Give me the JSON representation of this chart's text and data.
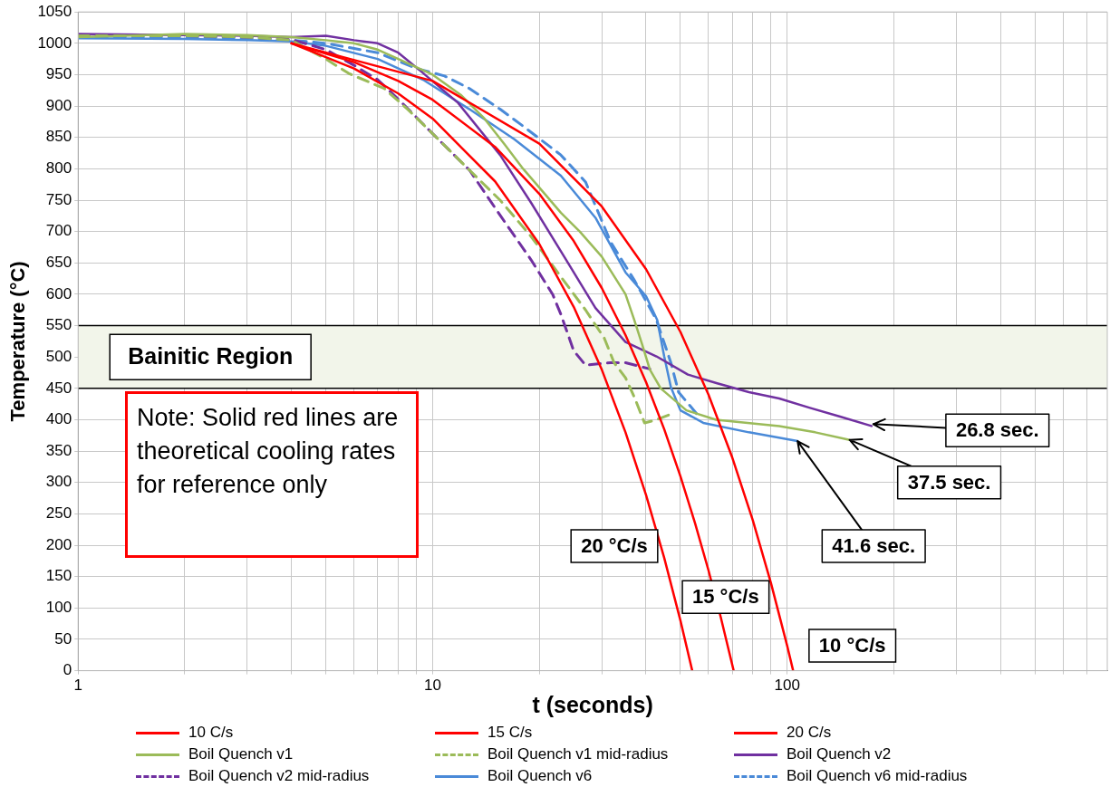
{
  "chart_data": {
    "type": "line",
    "xlabel": "t (seconds)",
    "ylabel": "Temperature (°C)",
    "log": "x",
    "grid": true,
    "legend": "bottom",
    "marker": "none",
    "xlim": [
      1,
      800
    ],
    "ylim": [
      0,
      1050
    ],
    "xticks": [
      1,
      {
        "value": 2,
        "label": null
      },
      {
        "value": 3,
        "label": null
      },
      {
        "value": 4,
        "label": null
      },
      {
        "value": 5,
        "label": null
      },
      {
        "value": 6,
        "label": null
      },
      {
        "value": 7,
        "label": null
      },
      {
        "value": 8,
        "label": null
      },
      {
        "value": 9,
        "label": null
      },
      10,
      {
        "value": 20,
        "label": null
      },
      {
        "value": 30,
        "label": null
      },
      {
        "value": 40,
        "label": null
      },
      {
        "value": 50,
        "label": null
      },
      {
        "value": 60,
        "label": null
      },
      {
        "value": 70,
        "label": null
      },
      {
        "value": 80,
        "label": null
      },
      {
        "value": 90,
        "label": null
      },
      100,
      {
        "value": 200,
        "label": null
      },
      {
        "value": 300,
        "label": null
      },
      {
        "value": 400,
        "label": null
      },
      {
        "value": 500,
        "label": null
      },
      {
        "value": 600,
        "label": null
      },
      {
        "value": 700,
        "label": null
      }
    ],
    "yticks": [
      0,
      50,
      100,
      150,
      200,
      250,
      300,
      350,
      400,
      450,
      500,
      550,
      600,
      650,
      700,
      750,
      800,
      850,
      900,
      950,
      1000,
      1050
    ],
    "bands": [
      {
        "axis": "y",
        "from": 450,
        "to": 550,
        "label": "Bainitic Region",
        "color": "#f2f5ea"
      }
    ],
    "series": [
      {
        "name": "10 C/s",
        "color": "#ff0000",
        "line_style": "solid",
        "x": [
          4,
          10,
          20,
          30,
          40,
          50,
          60,
          70,
          80,
          90,
          100,
          104
        ],
        "values": [
          1000,
          940,
          840,
          740,
          640,
          540,
          440,
          340,
          240,
          140,
          40,
          0
        ]
      },
      {
        "name": "15 C/s",
        "color": "#ff0000",
        "line_style": "solid",
        "x": [
          4,
          6,
          8,
          10,
          15,
          20,
          25,
          30,
          35,
          40,
          45,
          50,
          55,
          60,
          65,
          70.67
        ],
        "values": [
          1000,
          970,
          940,
          910,
          835,
          760,
          685,
          610,
          535,
          460,
          385,
          310,
          235,
          160,
          85,
          0
        ]
      },
      {
        "name": "20 C/s",
        "color": "#ff0000",
        "line_style": "solid",
        "x": [
          4,
          6,
          8,
          10,
          15,
          20,
          25,
          30,
          35,
          40,
          45,
          50,
          54
        ],
        "values": [
          1000,
          960,
          920,
          880,
          780,
          680,
          580,
          480,
          380,
          280,
          180,
          80,
          0
        ]
      },
      {
        "name": "Boil Quench v1",
        "color": "#9bbb59",
        "line_style": "solid",
        "x": [
          1,
          2,
          3,
          4,
          5,
          6,
          7,
          8,
          10,
          12,
          14,
          16,
          18,
          20,
          23,
          26,
          30,
          35,
          37,
          39,
          41,
          44,
          52,
          63,
          95,
          120,
          150
        ],
        "values": [
          1010,
          1015,
          1013,
          1010,
          1005,
          1000,
          990,
          975,
          950,
          918,
          880,
          838,
          800,
          770,
          730,
          700,
          660,
          600,
          560,
          520,
          480,
          450,
          415,
          400,
          390,
          380,
          368
        ]
      },
      {
        "name": "Boil Quench v1 mid-radius",
        "color": "#9bbb59",
        "line_style": "dashed",
        "x": [
          1,
          2,
          3,
          4,
          5,
          5.8,
          7.3,
          8.5,
          10,
          12.7,
          15.5,
          18.9,
          23,
          27,
          30.5,
          32.5,
          35,
          37.2,
          39.6,
          42.8,
          47
        ],
        "values": [
          1012,
          1012,
          1010,
          1005,
          975,
          952,
          928,
          895,
          856,
          798,
          750,
          693,
          628,
          575,
          530,
          491,
          467,
          434,
          395,
          400,
          409
        ]
      },
      {
        "name": "Boil Quench v2",
        "color": "#7030a0",
        "line_style": "solid",
        "x": [
          1,
          2,
          3,
          4,
          5,
          6,
          7,
          8,
          9.2,
          11.8,
          15.5,
          19,
          23.5,
          28.8,
          35,
          42.8,
          52.5,
          63.5,
          78,
          95,
          116,
          141,
          173
        ],
        "values": [
          1015,
          1013,
          1012,
          1010,
          1012,
          1005,
          1000,
          985,
          957,
          905,
          822,
          745,
          660,
          578,
          524,
          501,
          472,
          458,
          444,
          434,
          419,
          405,
          390
        ]
      },
      {
        "name": "Boil Quench v2 mid-radius",
        "color": "#7030a0",
        "line_style": "dashed",
        "x": [
          1,
          2,
          3,
          4,
          5,
          6,
          7,
          8.2,
          10,
          12.7,
          15.5,
          19,
          21.8,
          23,
          25,
          27,
          31.8,
          35,
          41
        ],
        "values": [
          1013,
          1012,
          1010,
          1006,
          990,
          965,
          942,
          905,
          856,
          798,
          726,
          654,
          600,
          568,
          510,
          487,
          491,
          491,
          481
        ]
      },
      {
        "name": "Boil Quench v6",
        "color": "#4a8ad8",
        "line_style": "solid",
        "x": [
          1,
          2,
          3,
          4,
          5,
          7,
          9.4,
          12.7,
          17,
          23,
          28.8,
          35,
          40,
          43,
          45,
          47,
          50,
          58,
          78,
          107
        ],
        "values": [
          1008,
          1007,
          1005,
          1003,
          996,
          975,
          942,
          895,
          847,
          789,
          722,
          635,
          597,
          559,
          501,
          452,
          415,
          395,
          380,
          366
        ]
      },
      {
        "name": "Boil Quench v6 mid-radius",
        "color": "#4a8ad8",
        "line_style": "dashed",
        "x": [
          1,
          2,
          3,
          4,
          5,
          7,
          9,
          10.8,
          12.7,
          15.5,
          17.8,
          23,
          27,
          31.8,
          37.2,
          42.8,
          47,
          49.4,
          55.7
        ],
        "values": [
          1010,
          1010,
          1008,
          1005,
          1000,
          985,
          960,
          948,
          928,
          895,
          870,
          822,
          779,
          683,
          621,
          559,
          491,
          444,
          409
        ]
      }
    ],
    "annotations": [
      "Note: Solid red lines are theoretical cooling rates for reference only",
      {
        "text": "26.8 sec.",
        "x": 175,
        "y": 393
      },
      {
        "text": "37.5 sec.",
        "x": 150,
        "y": 368
      },
      {
        "text": "41.6 sec.",
        "x": 107,
        "y": 366
      },
      {
        "text": "20 °C/s",
        "x": 45,
        "y": 180
      },
      {
        "text": "15 °C/s",
        "x": 64,
        "y": 100
      },
      {
        "text": "10 °C/s",
        "x": 100,
        "y": 40
      }
    ]
  }
}
